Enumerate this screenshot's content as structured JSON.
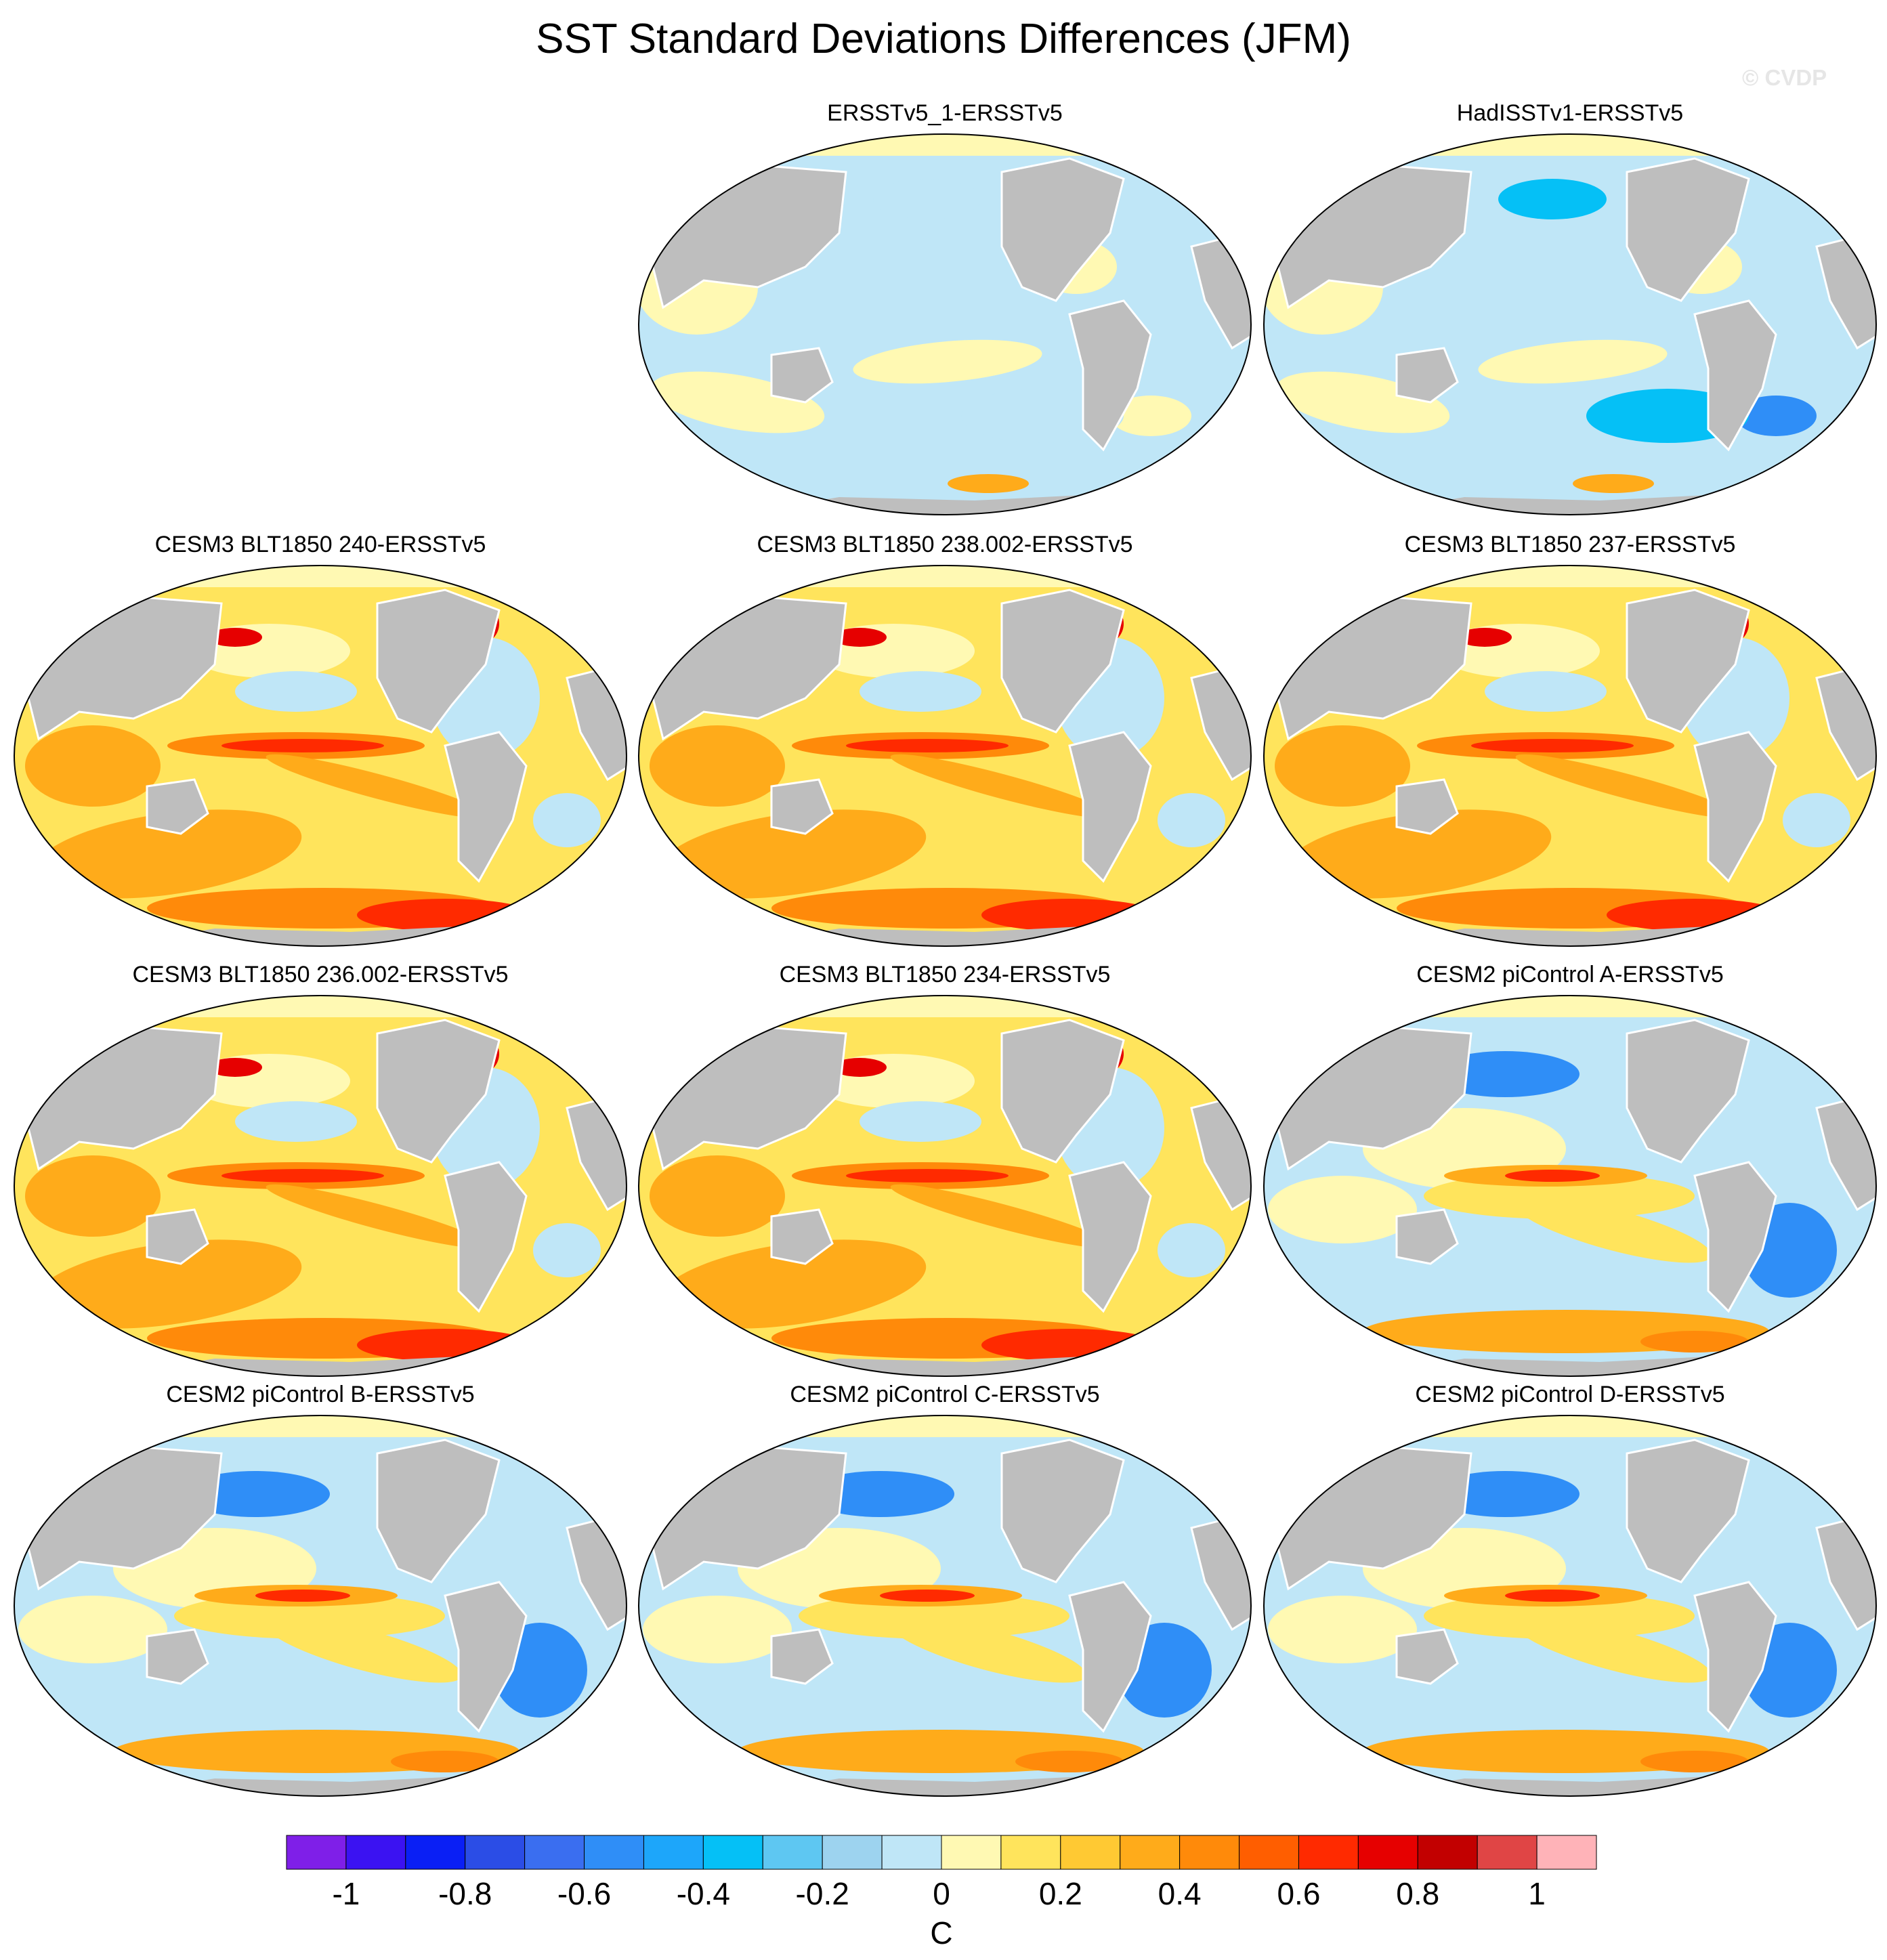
{
  "title": "SST Standard Deviations Differences (JFM)",
  "watermark": "© CVDP",
  "colorbar": {
    "unit": "C",
    "colors": [
      "#7f1fe8",
      "#3b12f2",
      "#0a1ff5",
      "#2b4de6",
      "#3a6ef0",
      "#2f8ef7",
      "#1da6fa",
      "#05c0f6",
      "#5ec7f2",
      "#9dd3ef",
      "#bfe6f7",
      "#fff9b3",
      "#ffe45c",
      "#ffc933",
      "#ffab1a",
      "#ff8a0a",
      "#ff5e00",
      "#ff2a00",
      "#e60000",
      "#c20000",
      "#e04545",
      "#ffb3b8"
    ],
    "tick_labels": [
      "-1",
      "-0.8",
      "-0.6",
      "-0.4",
      "-0.2",
      "0",
      "0.2",
      "0.4",
      "0.6",
      "0.8",
      "1"
    ]
  },
  "panels": [
    {
      "title": "ERSSTv5_1-ERSSTv5",
      "pattern": "obs"
    },
    {
      "title": "HadISSTv1-ERSSTv5",
      "pattern": "obs"
    },
    {
      "title": "CESM3 BLT1850 240-ERSSTv5",
      "pattern": "warm"
    },
    {
      "title": "CESM3 BLT1850 238.002-ERSSTv5",
      "pattern": "warm"
    },
    {
      "title": "CESM3 BLT1850 237-ERSSTv5",
      "pattern": "warm"
    },
    {
      "title": "CESM3 BLT1850 236.002-ERSSTv5",
      "pattern": "warm"
    },
    {
      "title": "CESM3 BLT1850 234-ERSSTv5",
      "pattern": "warm"
    },
    {
      "title": "CESM2 piControl A-ERSSTv5",
      "pattern": "cesm2"
    },
    {
      "title": "CESM2 piControl B-ERSSTv5",
      "pattern": "cesm2"
    },
    {
      "title": "CESM2 piControl C-ERSSTv5",
      "pattern": "cesm2"
    },
    {
      "title": "CESM2 piControl D-ERSSTv5",
      "pattern": "cesm2"
    }
  ]
}
